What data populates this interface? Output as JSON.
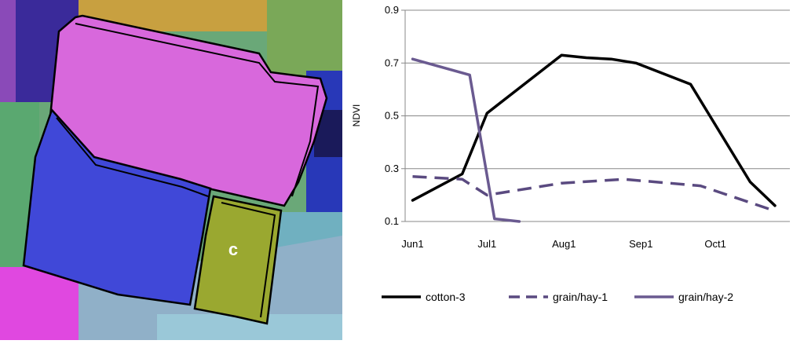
{
  "image_panel": {
    "field_label": "c",
    "colors": {
      "pink_field": "#d868dc",
      "blue_field": "#4048d8",
      "yellow_field": "#9aa830",
      "outline": "#000000",
      "background_cyan": "#68a8b8",
      "background_green": "#6aa878",
      "background_purple": "#3a2a9a",
      "background_orange": "#c8a040",
      "background_magenta": "#e048e0"
    }
  },
  "chart_data": {
    "type": "line",
    "xlabel": "",
    "ylabel": "NDVI",
    "ylim": [
      0.1,
      0.9
    ],
    "yticks": [
      "0.1",
      "0.3",
      "0.5",
      "0.7",
      "0.9"
    ],
    "xticks": [
      "Jun1",
      "Jul1",
      "Aug1",
      "Sep1",
      "Oct1"
    ],
    "xlim": [
      "2000-05-29",
      "2000-10-31"
    ],
    "grid": "horizontal",
    "legend": "bottom",
    "series": [
      {
        "name": "cotton-3",
        "color": "#000000",
        "style": "solid",
        "points": [
          [
            "2000-06-01",
            0.18
          ],
          [
            "2000-06-21",
            0.28
          ],
          [
            "2000-07-01",
            0.51
          ],
          [
            "2000-07-31",
            0.73
          ],
          [
            "2000-08-10",
            0.72
          ],
          [
            "2000-08-20",
            0.715
          ],
          [
            "2000-08-30",
            0.7
          ],
          [
            "2000-09-21",
            0.62
          ],
          [
            "2000-10-15",
            0.25
          ],
          [
            "2000-10-25",
            0.16
          ]
        ]
      },
      {
        "name": "grain/hay-1",
        "color": "#5a4a80",
        "style": "dashed",
        "points": [
          [
            "2000-06-01",
            0.27
          ],
          [
            "2000-06-21",
            0.26
          ],
          [
            "2000-07-01",
            0.2
          ],
          [
            "2000-07-31",
            0.245
          ],
          [
            "2000-08-25",
            0.26
          ],
          [
            "2000-09-25",
            0.235
          ],
          [
            "2000-10-25",
            0.14
          ]
        ]
      },
      {
        "name": "grain/hay-2",
        "color": "#6a5a90",
        "style": "solid",
        "points": [
          [
            "2000-06-01",
            0.715
          ],
          [
            "2000-06-24",
            0.655
          ],
          [
            "2000-07-04",
            0.11
          ],
          [
            "2000-07-14",
            0.1
          ]
        ]
      }
    ]
  }
}
